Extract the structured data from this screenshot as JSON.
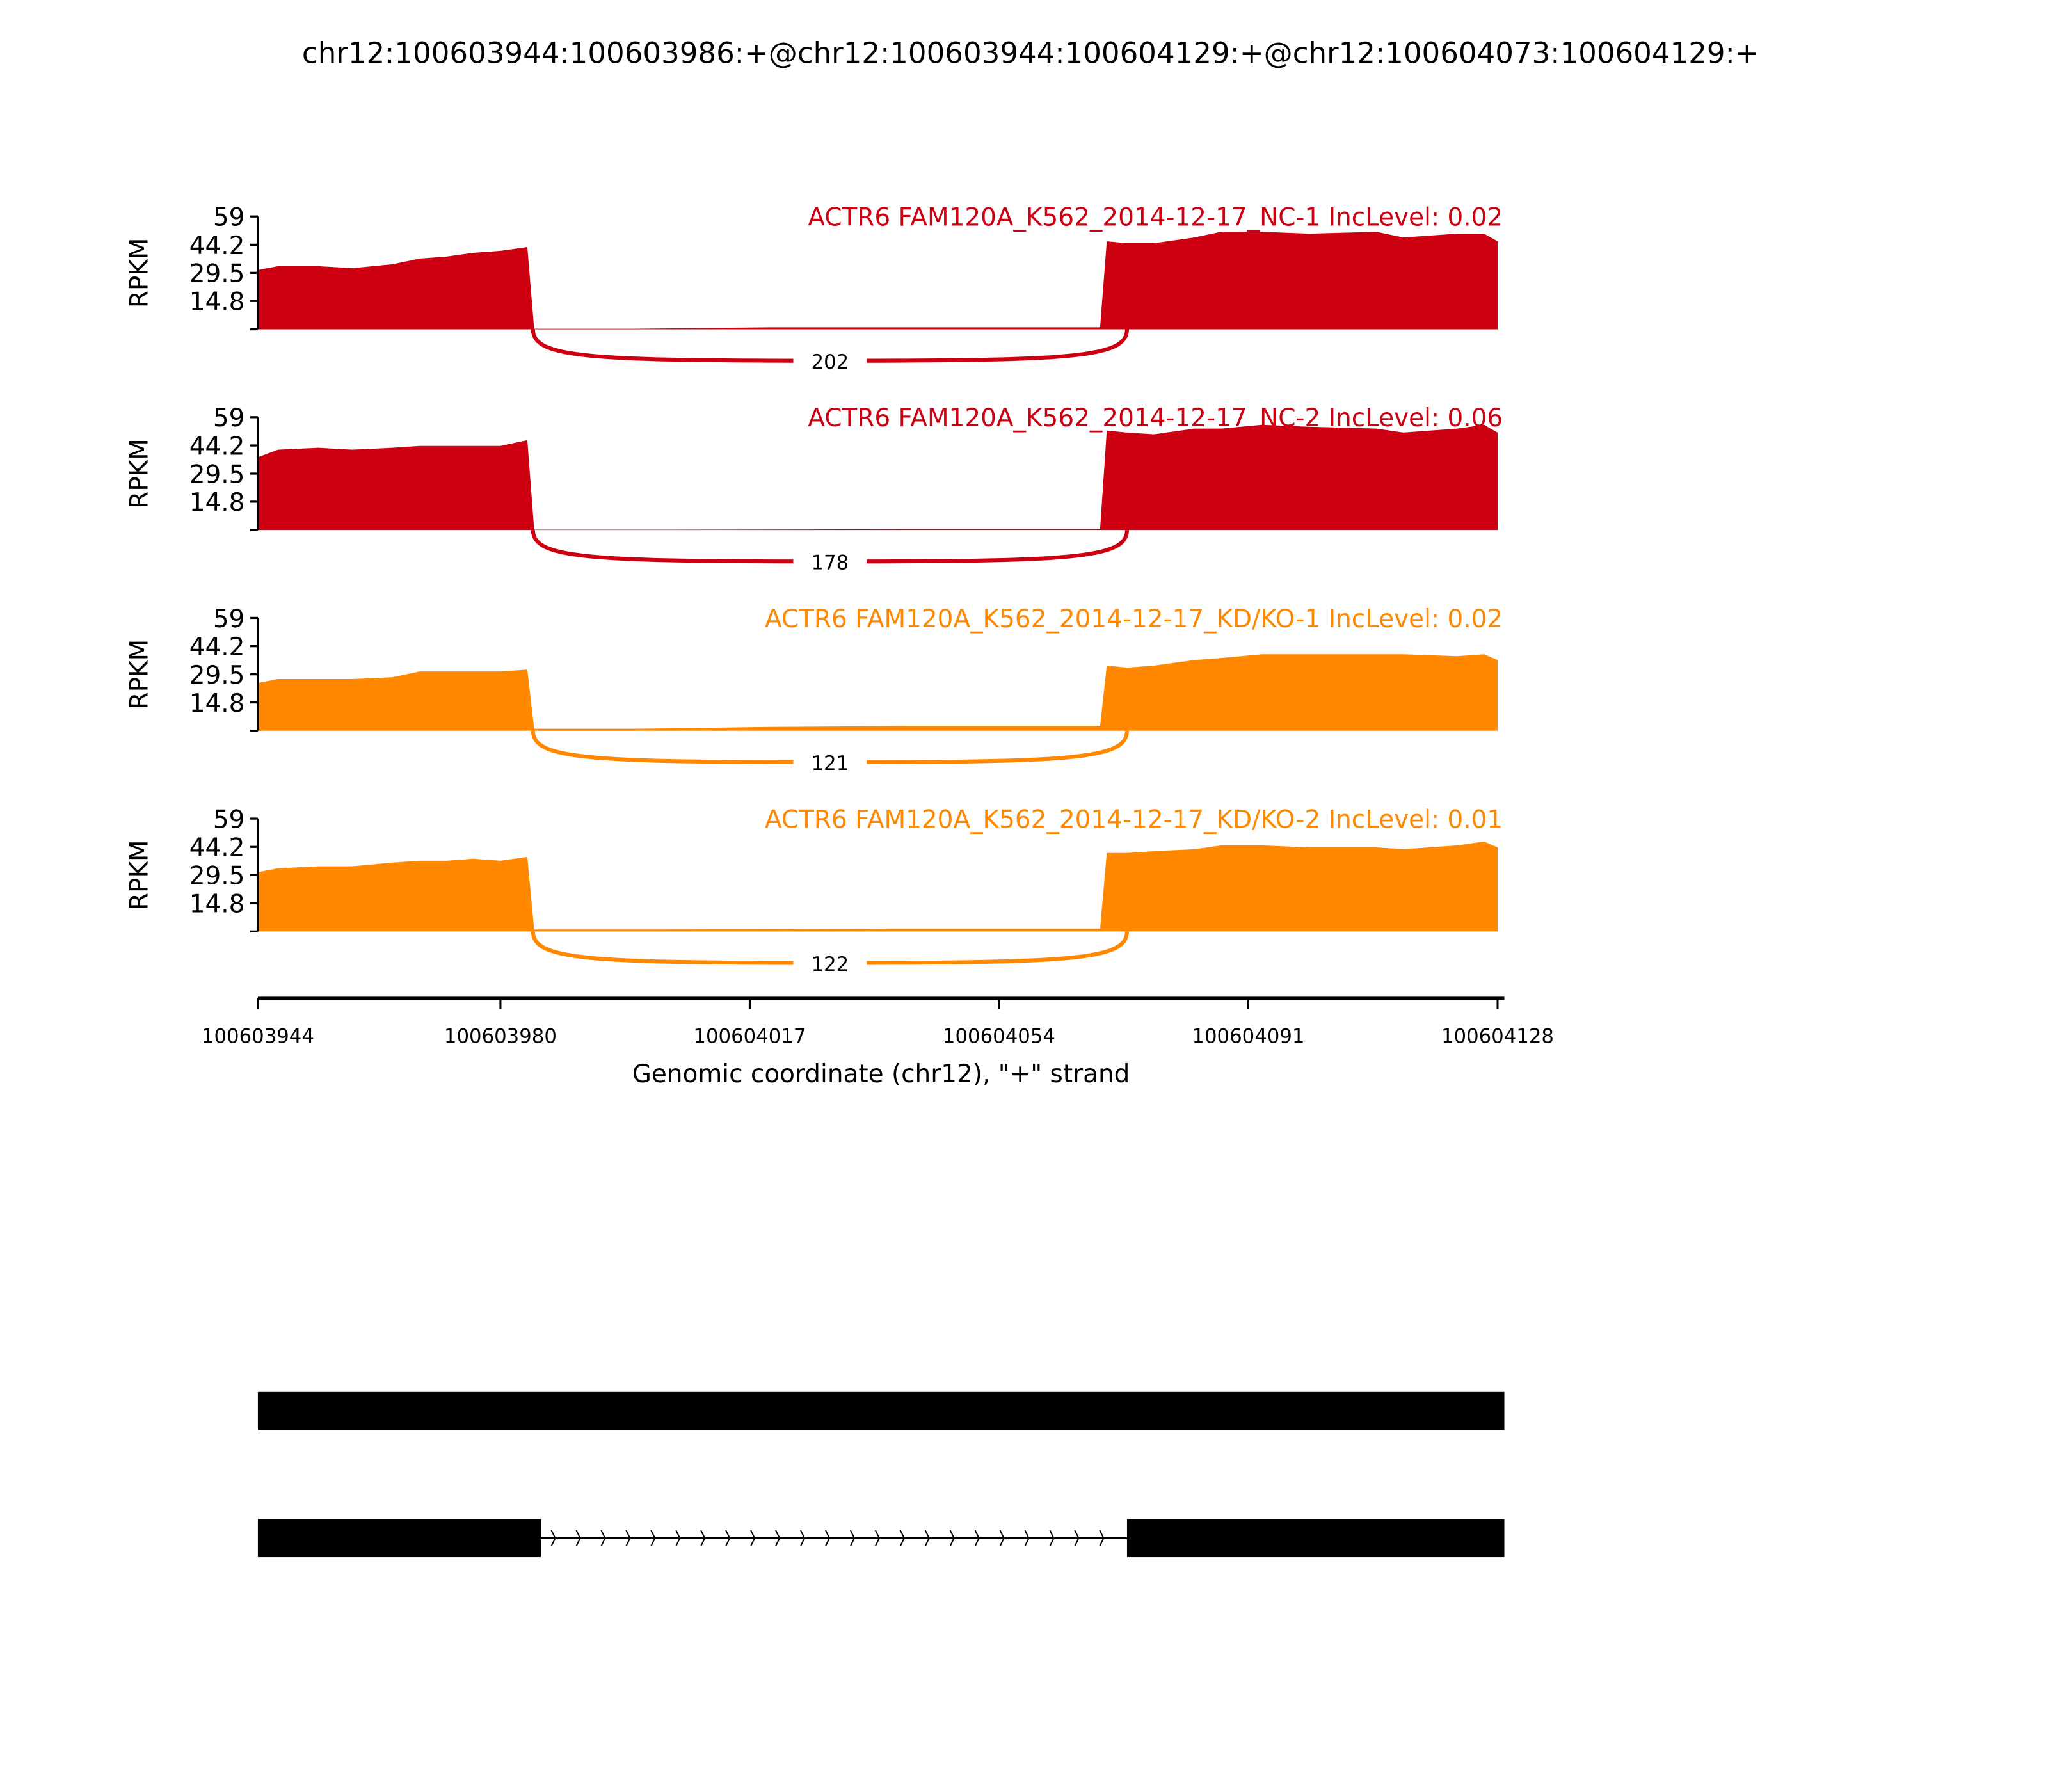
{
  "chart_data": {
    "type": "area",
    "title": "chr12:100603944:100603986:+@chr12:100603944:100604129:+@chr12:100604073:100604129:+",
    "xlabel": "Genomic coordinate (chr12), \"+\" strand",
    "ylabel": "RPKM",
    "xlim": [
      100603944,
      100604129
    ],
    "ylim": [
      0,
      59
    ],
    "yticks": [
      "14.8",
      "29.5",
      "44.2",
      "59"
    ],
    "xticks": [
      "100603944",
      "100603980",
      "100604017",
      "100604054",
      "100604091",
      "100604128"
    ],
    "x": [
      100603944,
      100603947,
      100603953,
      100603958,
      100603964,
      100603968,
      100603972,
      100603976,
      100603980,
      100603984,
      100603985,
      100604000,
      100604020,
      100604040,
      100604060,
      100604069,
      100604070,
      100604073,
      100604077,
      100604083,
      100604087,
      100604093,
      100604100,
      100604110,
      100604114,
      100604122,
      100604126,
      100604128
    ],
    "series": [
      {
        "name": "ACTR6 FAM120A_K562_2014-12-17_NC-1 IncLevel: 0.02",
        "color": "#CC0011",
        "junction_count": "202",
        "values": [
          31,
          33,
          33,
          32,
          34,
          37,
          38,
          40,
          41,
          43,
          0.3,
          0.3,
          1,
          1,
          1,
          1,
          46,
          45,
          45,
          48,
          51,
          51,
          50,
          51,
          48,
          50,
          50,
          46
        ]
      },
      {
        "name": "ACTR6 FAM120A_K562_2014-12-17_NC-2 IncLevel: 0.06",
        "color": "#CC0011",
        "junction_count": "178",
        "values": [
          38,
          42,
          43,
          42,
          43,
          44,
          44,
          44,
          44,
          47,
          0.2,
          0.2,
          0.3,
          0.5,
          0.5,
          0.5,
          52,
          51,
          50,
          53,
          53,
          55,
          54,
          53,
          51,
          53,
          55,
          51
        ]
      },
      {
        "name": "ACTR6 FAM120A_K562_2014-12-17_KD/KO-1 IncLevel: 0.02",
        "color": "#FF8800",
        "junction_count": "121",
        "values": [
          25,
          27,
          27,
          27,
          28,
          31,
          31,
          31,
          31,
          32,
          1,
          1,
          2,
          2.5,
          2.5,
          2.5,
          34,
          33,
          34,
          37,
          38,
          40,
          40,
          40,
          40,
          39,
          40,
          37
        ]
      },
      {
        "name": "ACTR6 FAM120A_K562_2014-12-17_KD/KO-2 IncLevel: 0.01",
        "color": "#FF8800",
        "junction_count": "122",
        "values": [
          31,
          33,
          34,
          34,
          36,
          37,
          37,
          38,
          37,
          39,
          1,
          1,
          1.2,
          1.5,
          1.5,
          1.5,
          41,
          41,
          42,
          43,
          45,
          45,
          44,
          44,
          43,
          45,
          47,
          44
        ]
      }
    ],
    "junction": [
      100603986,
      100604073
    ],
    "isoforms": [
      {
        "exons": [
          [
            100603944,
            100604129
          ]
        ]
      },
      {
        "exons": [
          [
            100603944,
            100603986
          ],
          [
            100604073,
            100604129
          ]
        ]
      }
    ],
    "grid": false
  }
}
